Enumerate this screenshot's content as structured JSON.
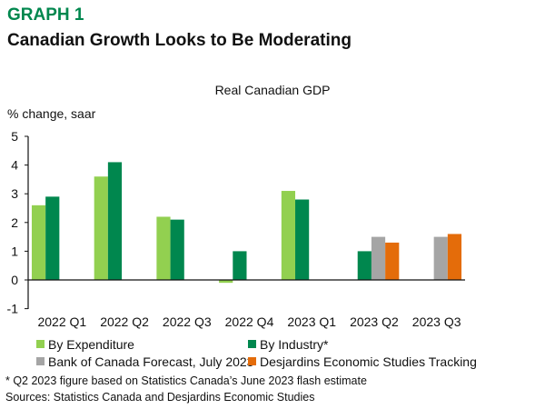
{
  "header": {
    "graph_label": "GRAPH 1",
    "title": "Canadian Growth Looks to Be Moderating"
  },
  "chart_data": {
    "type": "bar",
    "title": "Real Canadian GDP",
    "ylabel": "% change, saar",
    "xlabel": "",
    "ylim": [
      -1,
      5
    ],
    "yticks": [
      "5",
      "4",
      "3",
      "2",
      "1",
      "0",
      "-1"
    ],
    "grid": false,
    "legend_position": "bottom",
    "categories": [
      "2022 Q1",
      "2022 Q2",
      "2022 Q3",
      "2022 Q4",
      "2023 Q1",
      "2023 Q2",
      "2023 Q3"
    ],
    "series": [
      {
        "name": "By Expenditure",
        "color": "#92d050",
        "values": [
          2.6,
          3.6,
          2.2,
          -0.1,
          3.1,
          null,
          null
        ]
      },
      {
        "name": "By Industry*",
        "color": "#00874e",
        "values": [
          2.9,
          4.1,
          2.1,
          1.0,
          2.8,
          1.0,
          null
        ]
      },
      {
        "name": "Bank of Canada Forecast, July 2023",
        "color": "#a5a5a5",
        "values": [
          null,
          null,
          null,
          null,
          null,
          1.5,
          1.5
        ]
      },
      {
        "name": "Desjardins Economic Studies Tracking",
        "color": "#e46c0a",
        "values": [
          null,
          null,
          null,
          null,
          null,
          1.3,
          1.6
        ]
      }
    ]
  },
  "footer": {
    "footnote": "* Q2 2023 figure based on Statistics Canada’s June 2023 flash estimate",
    "sources": "Sources: Statistics Canada and Desjardins Economic Studies"
  },
  "colors": {
    "title_green": "#00874e"
  }
}
